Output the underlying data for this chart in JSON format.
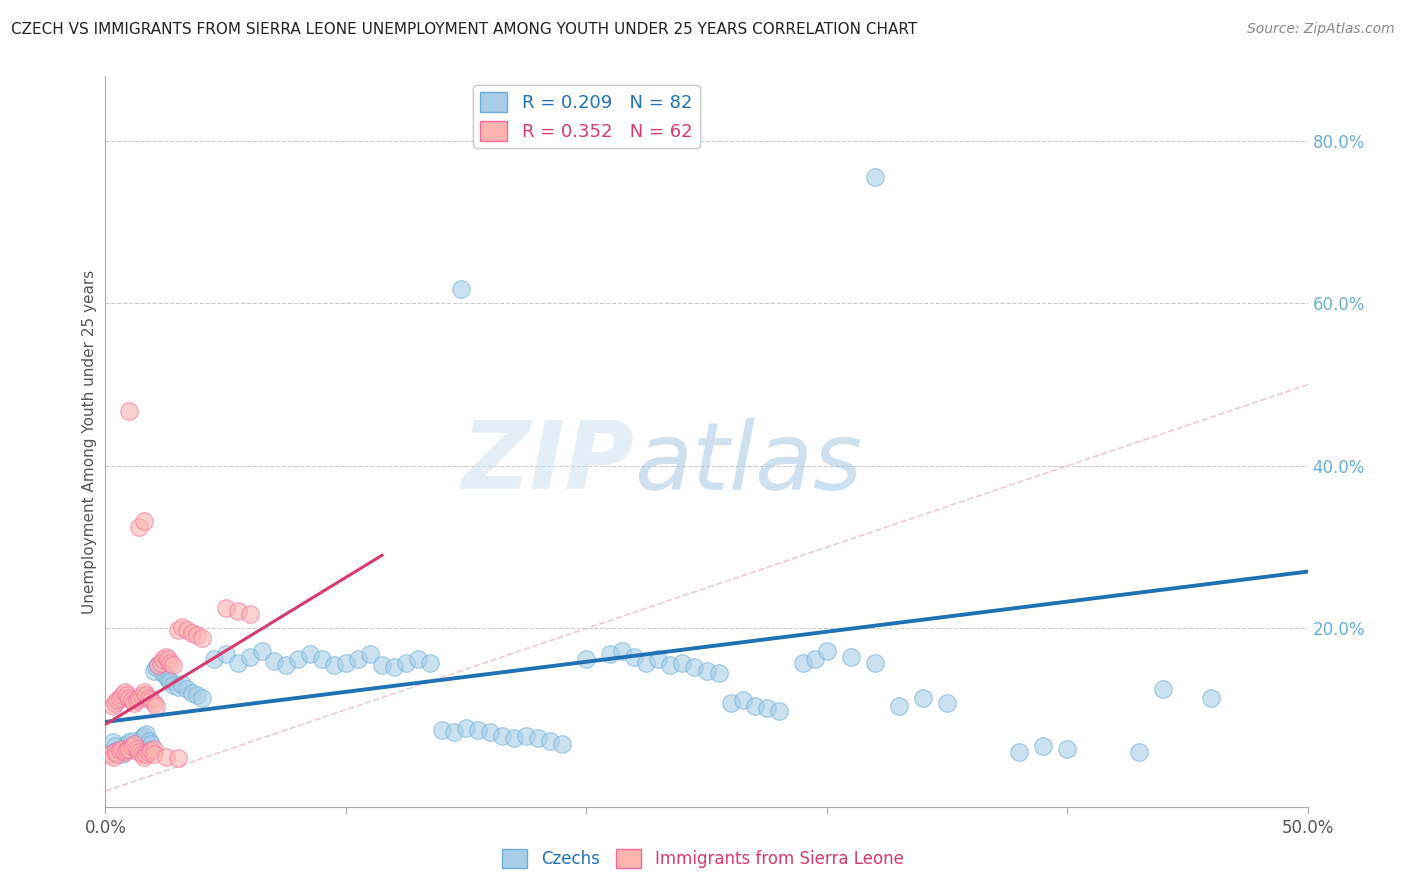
{
  "title": "CZECH VS IMMIGRANTS FROM SIERRA LEONE UNEMPLOYMENT AMONG YOUTH UNDER 25 YEARS CORRELATION CHART",
  "source": "Source: ZipAtlas.com",
  "ylabel": "Unemployment Among Youth under 25 years",
  "right_ytick_labels": [
    "20.0%",
    "40.0%",
    "60.0%",
    "80.0%"
  ],
  "right_ytick_values": [
    0.2,
    0.4,
    0.6,
    0.8
  ],
  "xlim": [
    0.0,
    0.5
  ],
  "ylim": [
    -0.02,
    0.88
  ],
  "xtick_values": [
    0.0,
    0.1,
    0.2,
    0.3,
    0.4,
    0.5
  ],
  "xtick_labels_outer": [
    "0.0%",
    "",
    "",
    "",
    "",
    "50.0%"
  ],
  "legend_label1": "Czechs",
  "legend_label2": "Immigrants from Sierra Leone",
  "blue_color": "#a8cde8",
  "blue_edge_color": "#6baed6",
  "blue_line_color": "#2171b5",
  "pink_color": "#fbb4ae",
  "pink_edge_color": "#f768a1",
  "pink_line_color": "#d63b6e",
  "watermark_zip": "ZIP",
  "watermark_atlas": "atlas",
  "background_color": "#ffffff",
  "grid_color": "#cccccc",
  "title_color": "#222222",
  "blue_scatter": [
    [
      0.003,
      0.06
    ],
    [
      0.004,
      0.055
    ],
    [
      0.005,
      0.05
    ],
    [
      0.006,
      0.048
    ],
    [
      0.007,
      0.045
    ],
    [
      0.008,
      0.052
    ],
    [
      0.009,
      0.058
    ],
    [
      0.01,
      0.06
    ],
    [
      0.011,
      0.062
    ],
    [
      0.012,
      0.055
    ],
    [
      0.013,
      0.058
    ],
    [
      0.014,
      0.052
    ],
    [
      0.015,
      0.065
    ],
    [
      0.016,
      0.068
    ],
    [
      0.017,
      0.07
    ],
    [
      0.018,
      0.062
    ],
    [
      0.019,
      0.058
    ],
    [
      0.02,
      0.148
    ],
    [
      0.021,
      0.152
    ],
    [
      0.022,
      0.155
    ],
    [
      0.023,
      0.158
    ],
    [
      0.024,
      0.145
    ],
    [
      0.025,
      0.142
    ],
    [
      0.026,
      0.138
    ],
    [
      0.027,
      0.135
    ],
    [
      0.028,
      0.13
    ],
    [
      0.03,
      0.128
    ],
    [
      0.032,
      0.132
    ],
    [
      0.034,
      0.125
    ],
    [
      0.036,
      0.12
    ],
    [
      0.038,
      0.118
    ],
    [
      0.04,
      0.115
    ],
    [
      0.045,
      0.162
    ],
    [
      0.05,
      0.168
    ],
    [
      0.055,
      0.158
    ],
    [
      0.06,
      0.165
    ],
    [
      0.065,
      0.172
    ],
    [
      0.07,
      0.16
    ],
    [
      0.075,
      0.155
    ],
    [
      0.08,
      0.162
    ],
    [
      0.085,
      0.168
    ],
    [
      0.09,
      0.162
    ],
    [
      0.095,
      0.155
    ],
    [
      0.1,
      0.158
    ],
    [
      0.105,
      0.162
    ],
    [
      0.11,
      0.168
    ],
    [
      0.115,
      0.155
    ],
    [
      0.12,
      0.152
    ],
    [
      0.125,
      0.158
    ],
    [
      0.13,
      0.162
    ],
    [
      0.135,
      0.158
    ],
    [
      0.14,
      0.075
    ],
    [
      0.145,
      0.072
    ],
    [
      0.15,
      0.078
    ],
    [
      0.155,
      0.075
    ],
    [
      0.16,
      0.072
    ],
    [
      0.165,
      0.068
    ],
    [
      0.17,
      0.065
    ],
    [
      0.175,
      0.068
    ],
    [
      0.18,
      0.065
    ],
    [
      0.185,
      0.062
    ],
    [
      0.19,
      0.058
    ],
    [
      0.2,
      0.162
    ],
    [
      0.21,
      0.168
    ],
    [
      0.215,
      0.172
    ],
    [
      0.22,
      0.165
    ],
    [
      0.225,
      0.158
    ],
    [
      0.23,
      0.162
    ],
    [
      0.235,
      0.155
    ],
    [
      0.24,
      0.158
    ],
    [
      0.245,
      0.152
    ],
    [
      0.25,
      0.148
    ],
    [
      0.255,
      0.145
    ],
    [
      0.26,
      0.108
    ],
    [
      0.265,
      0.112
    ],
    [
      0.27,
      0.105
    ],
    [
      0.275,
      0.102
    ],
    [
      0.28,
      0.098
    ],
    [
      0.29,
      0.158
    ],
    [
      0.295,
      0.162
    ],
    [
      0.3,
      0.172
    ],
    [
      0.31,
      0.165
    ],
    [
      0.32,
      0.158
    ],
    [
      0.33,
      0.105
    ],
    [
      0.34,
      0.115
    ],
    [
      0.35,
      0.108
    ],
    [
      0.38,
      0.048
    ],
    [
      0.39,
      0.055
    ],
    [
      0.4,
      0.052
    ],
    [
      0.43,
      0.048
    ],
    [
      0.44,
      0.125
    ],
    [
      0.46,
      0.115
    ],
    [
      0.148,
      0.618
    ],
    [
      0.32,
      0.755
    ]
  ],
  "pink_scatter": [
    [
      0.002,
      0.045
    ],
    [
      0.003,
      0.042
    ],
    [
      0.004,
      0.048
    ],
    [
      0.005,
      0.045
    ],
    [
      0.006,
      0.05
    ],
    [
      0.007,
      0.052
    ],
    [
      0.008,
      0.048
    ],
    [
      0.009,
      0.05
    ],
    [
      0.01,
      0.052
    ],
    [
      0.011,
      0.055
    ],
    [
      0.012,
      0.058
    ],
    [
      0.013,
      0.052
    ],
    [
      0.014,
      0.048
    ],
    [
      0.015,
      0.045
    ],
    [
      0.016,
      0.042
    ],
    [
      0.017,
      0.045
    ],
    [
      0.018,
      0.048
    ],
    [
      0.019,
      0.05
    ],
    [
      0.02,
      0.052
    ],
    [
      0.003,
      0.105
    ],
    [
      0.004,
      0.108
    ],
    [
      0.005,
      0.112
    ],
    [
      0.006,
      0.115
    ],
    [
      0.007,
      0.118
    ],
    [
      0.008,
      0.122
    ],
    [
      0.009,
      0.118
    ],
    [
      0.01,
      0.115
    ],
    [
      0.011,
      0.112
    ],
    [
      0.012,
      0.108
    ],
    [
      0.013,
      0.112
    ],
    [
      0.014,
      0.115
    ],
    [
      0.015,
      0.118
    ],
    [
      0.016,
      0.122
    ],
    [
      0.017,
      0.118
    ],
    [
      0.018,
      0.115
    ],
    [
      0.019,
      0.112
    ],
    [
      0.02,
      0.108
    ],
    [
      0.021,
      0.105
    ],
    [
      0.022,
      0.155
    ],
    [
      0.023,
      0.158
    ],
    [
      0.024,
      0.162
    ],
    [
      0.025,
      0.165
    ],
    [
      0.026,
      0.162
    ],
    [
      0.027,
      0.158
    ],
    [
      0.028,
      0.155
    ],
    [
      0.03,
      0.198
    ],
    [
      0.032,
      0.202
    ],
    [
      0.034,
      0.198
    ],
    [
      0.036,
      0.195
    ],
    [
      0.038,
      0.192
    ],
    [
      0.04,
      0.188
    ],
    [
      0.05,
      0.225
    ],
    [
      0.055,
      0.222
    ],
    [
      0.06,
      0.218
    ],
    [
      0.02,
      0.045
    ],
    [
      0.025,
      0.042
    ],
    [
      0.03,
      0.04
    ],
    [
      0.014,
      0.325
    ],
    [
      0.016,
      0.332
    ],
    [
      0.01,
      0.468
    ]
  ],
  "blue_trendline": [
    [
      0.0,
      0.085
    ],
    [
      0.5,
      0.27
    ]
  ],
  "pink_trendline": [
    [
      0.0,
      0.082
    ],
    [
      0.115,
      0.29
    ]
  ],
  "diag_line": [
    [
      0.0,
      0.0
    ],
    [
      0.88,
      0.88
    ]
  ]
}
